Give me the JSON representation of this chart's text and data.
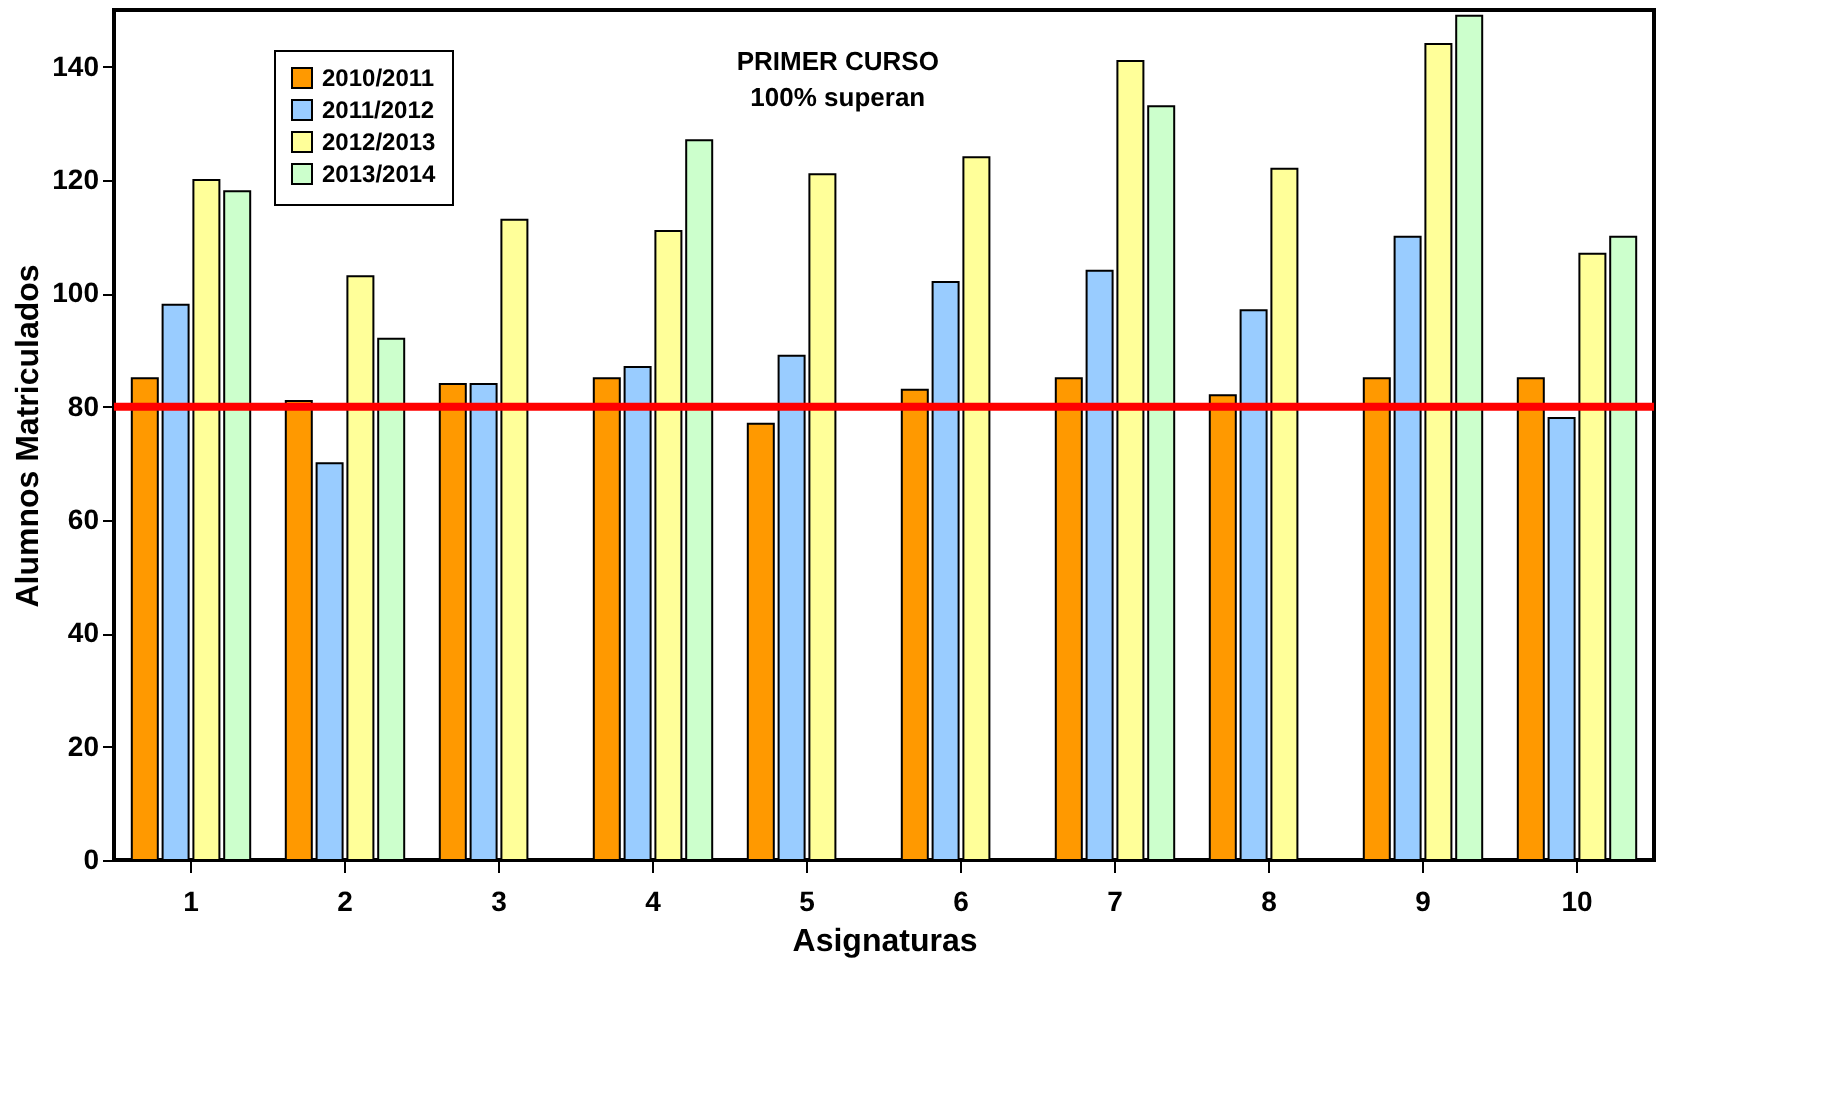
{
  "chart_data": {
    "type": "bar",
    "xlabel": "Asignaturas",
    "ylabel": "Alumnos Matriculados",
    "categories": [
      "1",
      "2",
      "3",
      "4",
      "5",
      "6",
      "7",
      "8",
      "9",
      "10"
    ],
    "series": [
      {
        "name": "2010/2011",
        "color": "#ff9900",
        "values": [
          85,
          81,
          84,
          85,
          77,
          83,
          85,
          82,
          85,
          85
        ]
      },
      {
        "name": "2011/2012",
        "color": "#99ccff",
        "values": [
          98,
          70,
          84,
          87,
          89,
          102,
          104,
          97,
          110,
          78
        ]
      },
      {
        "name": "2012/2013",
        "color": "#ffff99",
        "values": [
          120,
          103,
          113,
          111,
          121,
          124,
          141,
          122,
          144,
          107
        ]
      },
      {
        "name": "2013/2014",
        "color": "#ccffcc",
        "values": [
          118,
          92,
          null,
          127,
          null,
          null,
          133,
          null,
          149,
          110
        ]
      }
    ],
    "ylim": [
      0,
      150
    ],
    "yticks": [
      0,
      20,
      40,
      60,
      80,
      100,
      120,
      140
    ],
    "ref_lines": [
      {
        "axis": "y",
        "value": 80,
        "color": "#ff0000"
      }
    ],
    "annotations": [
      "PRIMER CURSO\n100% superan"
    ],
    "legend": "top left",
    "grid": false
  }
}
